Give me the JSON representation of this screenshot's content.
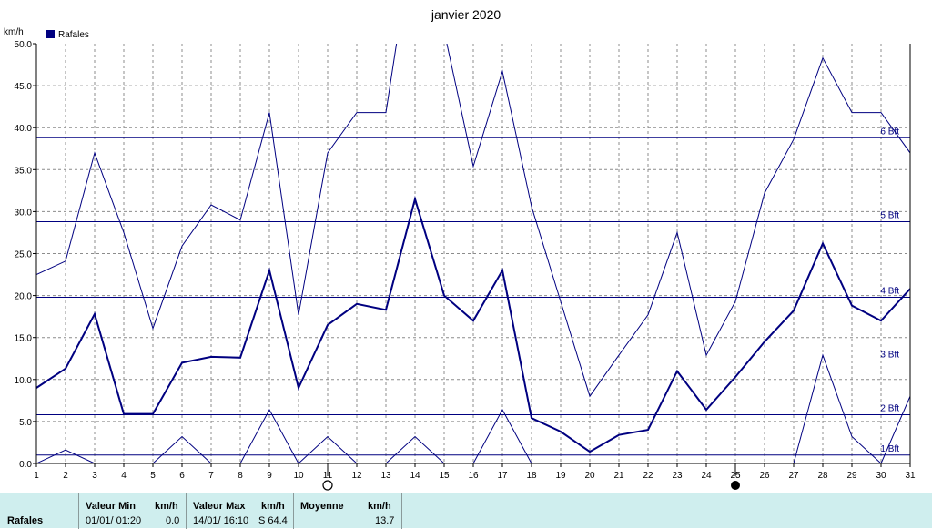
{
  "chart_data": {
    "type": "line",
    "title": "janvier 2020",
    "ylabel": "km/h",
    "legend": "Rafales",
    "x": [
      1,
      2,
      3,
      4,
      5,
      6,
      7,
      8,
      9,
      10,
      11,
      12,
      13,
      14,
      15,
      16,
      17,
      18,
      19,
      20,
      21,
      22,
      23,
      24,
      25,
      26,
      27,
      28,
      29,
      30,
      31
    ],
    "ylim": [
      0,
      50
    ],
    "yticks": [
      "0.0",
      "5.0",
      "10.0",
      "15.0",
      "20.0",
      "25.0",
      "30.0",
      "35.0",
      "40.0",
      "45.0",
      "50.0"
    ],
    "series": [
      {
        "name": "Rafales",
        "role": "mean",
        "color": "#000080",
        "values": [
          9.0,
          11.3,
          17.8,
          5.9,
          5.9,
          12.0,
          12.7,
          12.6,
          23.0,
          9.0,
          16.5,
          19.0,
          18.3,
          31.5,
          20.0,
          17.0,
          23.0,
          5.4,
          3.8,
          1.4,
          3.4,
          4.0,
          11.0,
          6.4,
          10.3,
          14.5,
          18.2,
          26.2,
          18.8,
          17.0,
          20.8
        ]
      },
      {
        "role": "max",
        "color": "#000080",
        "values": [
          22.5,
          24.1,
          37.0,
          27.5,
          16.1,
          25.9,
          30.8,
          29.0,
          41.8,
          17.7,
          37.0,
          41.8,
          41.8,
          64.4,
          51.5,
          35.4,
          46.7,
          30.6,
          19.3,
          8.0,
          12.9,
          17.7,
          27.5,
          12.9,
          19.3,
          32.2,
          38.6,
          48.3,
          41.8,
          41.8,
          37.0
        ]
      },
      {
        "role": "min",
        "color": "#000080",
        "values": [
          0.0,
          1.6,
          0.0,
          0.0,
          0.0,
          3.2,
          0.0,
          0.0,
          6.4,
          0.0,
          3.2,
          0.0,
          0.0,
          3.2,
          0.0,
          0.0,
          6.4,
          0.0,
          0.0,
          0.0,
          0.0,
          0.0,
          0.0,
          0.0,
          0.0,
          0.0,
          0.0,
          12.9,
          3.2,
          0.0,
          8.0
        ]
      }
    ],
    "beaufort": [
      {
        "label": "1 Bft",
        "value": 1.0
      },
      {
        "label": "2 Bft",
        "value": 5.8
      },
      {
        "label": "3 Bft",
        "value": 12.2
      },
      {
        "label": "4 Bft",
        "value": 19.8
      },
      {
        "label": "5 Bft",
        "value": 28.8
      },
      {
        "label": "6 Bft",
        "value": 38.8
      }
    ],
    "moon_phases": [
      {
        "day": 11,
        "phase": "full"
      },
      {
        "day": 25,
        "phase": "new"
      }
    ],
    "grid": true
  },
  "footer": {
    "row_label": "Rafales",
    "min_header": "Valeur Min",
    "min_unit": "km/h",
    "min_date": "01/01/  01:20",
    "min_value": "0.0",
    "max_header": "Valeur Max",
    "max_unit": "km/h",
    "max_date": "14/01/  16:10",
    "max_value": "S 64.4",
    "mean_header": "Moyenne",
    "mean_unit": "km/h",
    "mean_value": "13.7"
  }
}
